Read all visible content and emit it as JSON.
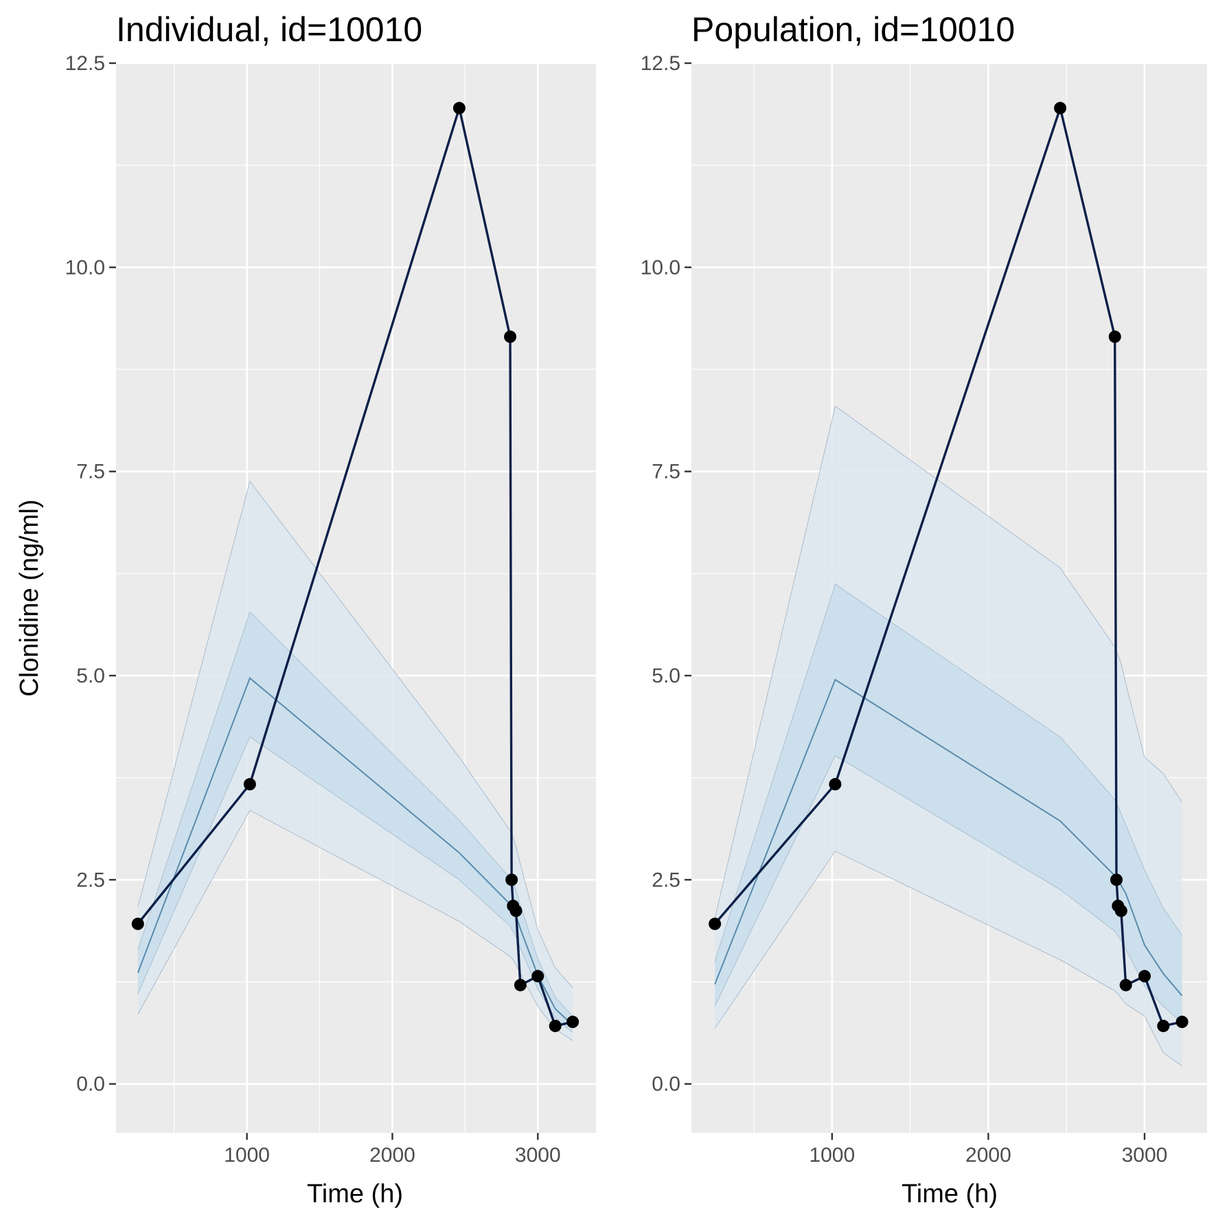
{
  "figure": {
    "ylabel": "Clonidine (ng/ml)",
    "xlabel": "Time (h)"
  },
  "colors": {
    "panel_background": "#ebebeb",
    "grid": "#ffffff",
    "observed": "#0b1f48",
    "median_line": "#5b8bab",
    "inner_band": "#c6dcec",
    "outer_band": "#dde7f0",
    "band_edge": "#7d99b3"
  },
  "chart_data": [
    {
      "type": "line",
      "title": "Individual, id=10010",
      "xlabel": "Time (h)",
      "ylabel": "Clonidine (ng/ml)",
      "xlim": [
        100,
        3400
      ],
      "ylim": [
        -0.6,
        12.5
      ],
      "x_ticks": [
        1000,
        2000,
        3000
      ],
      "y_ticks": [
        0.0,
        2.5,
        5.0,
        7.5,
        10.0,
        12.5
      ],
      "grid": true,
      "observed": {
        "x": [
          250,
          1020,
          2460,
          2810,
          2820,
          2830,
          2850,
          2880,
          3000,
          3120,
          3240
        ],
        "y": [
          1.96,
          3.67,
          11.95,
          9.15,
          2.5,
          2.18,
          2.12,
          1.21,
          1.32,
          0.71,
          0.76
        ]
      },
      "prediction": {
        "x": [
          250,
          1020,
          2460,
          2810,
          2820,
          2830,
          2850,
          2880,
          3000,
          3120,
          3240
        ],
        "median": [
          1.36,
          4.97,
          2.83,
          2.2,
          2.17,
          2.14,
          2.06,
          1.9,
          1.33,
          0.92,
          0.72
        ],
        "inner_lower": [
          1.1,
          4.25,
          2.5,
          1.93,
          1.9,
          1.87,
          1.8,
          1.66,
          1.16,
          0.81,
          0.63
        ],
        "inner_upper": [
          1.64,
          5.78,
          3.23,
          2.52,
          2.49,
          2.46,
          2.37,
          2.19,
          1.53,
          1.06,
          0.83
        ],
        "outer_lower": [
          0.85,
          3.35,
          1.99,
          1.56,
          1.54,
          1.52,
          1.46,
          1.35,
          0.95,
          0.67,
          0.53
        ],
        "outer_upper": [
          2.17,
          7.38,
          4.0,
          3.1,
          3.06,
          3.02,
          2.91,
          2.69,
          1.89,
          1.42,
          1.18
        ]
      }
    },
    {
      "type": "line",
      "title": "Population, id=10010",
      "xlabel": "Time (h)",
      "ylabel": "",
      "xlim": [
        100,
        3400
      ],
      "ylim": [
        -0.6,
        12.5
      ],
      "x_ticks": [
        1000,
        2000,
        3000
      ],
      "y_ticks": [
        0.0,
        2.5,
        5.0,
        7.5,
        10.0,
        12.5
      ],
      "grid": true,
      "observed": {
        "x": [
          250,
          1020,
          2460,
          2810,
          2820,
          2830,
          2850,
          2880,
          3000,
          3120,
          3240
        ],
        "y": [
          1.96,
          3.67,
          11.95,
          9.15,
          2.5,
          2.18,
          2.12,
          1.21,
          1.32,
          0.71,
          0.76
        ]
      },
      "prediction": {
        "x": [
          250,
          1020,
          2460,
          2810,
          2820,
          2830,
          2850,
          2880,
          3000,
          3120,
          3240
        ],
        "median": [
          1.22,
          4.95,
          3.22,
          2.55,
          2.52,
          2.49,
          2.43,
          2.33,
          1.7,
          1.35,
          1.08
        ],
        "inner_lower": [
          0.95,
          4.02,
          2.38,
          1.87,
          1.84,
          1.81,
          1.76,
          1.65,
          1.2,
          0.95,
          0.75
        ],
        "inner_upper": [
          1.5,
          6.12,
          4.25,
          3.48,
          3.44,
          3.4,
          3.31,
          3.17,
          2.62,
          2.15,
          1.82
        ],
        "outer_lower": [
          0.68,
          2.85,
          1.52,
          1.14,
          1.12,
          1.1,
          1.05,
          0.98,
          0.83,
          0.38,
          0.22
        ],
        "outer_upper": [
          2.03,
          8.3,
          6.32,
          5.35,
          5.3,
          5.25,
          5.15,
          4.9,
          4.0,
          3.8,
          3.45
        ]
      }
    }
  ]
}
